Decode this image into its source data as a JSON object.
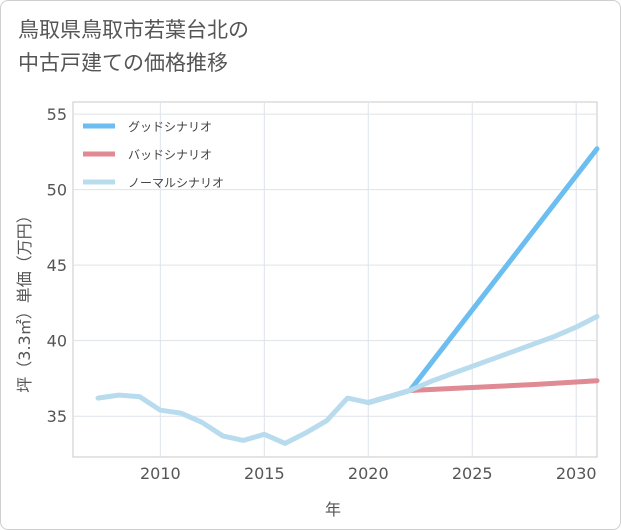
{
  "title_lines": [
    "鳥取県鳥取市若葉台北の",
    "中古戸建ての価格推移"
  ],
  "chart_data": {
    "type": "line",
    "title": "鳥取県鳥取市若葉台北の中古戸建ての価格推移",
    "xlabel": "年",
    "ylabel": "坪（3.3㎡）単価（万円）",
    "xlim": [
      2005.8,
      2031
    ],
    "ylim": [
      32.3,
      55.8
    ],
    "x_ticks": [
      2010,
      2015,
      2020,
      2025,
      2030
    ],
    "y_ticks": [
      35,
      40,
      45,
      50,
      55
    ],
    "grid": true,
    "legend_position": "top-left",
    "series": [
      {
        "name": "グッドシナリオ",
        "color": "#6cbef0",
        "x": [
          2020,
          2021,
          2022,
          2031
        ],
        "y": [
          35.9,
          36.3,
          36.7,
          52.7
        ]
      },
      {
        "name": "バッドシナリオ",
        "color": "#e08a93",
        "x": [
          2020,
          2021,
          2022,
          2025,
          2028,
          2031
        ],
        "y": [
          35.9,
          36.3,
          36.7,
          36.9,
          37.1,
          37.35
        ]
      },
      {
        "name": "ノーマルシナリオ",
        "color": "#b8dcee",
        "x": [
          2007,
          2008,
          2009,
          2010,
          2011,
          2012,
          2013,
          2014,
          2015,
          2016,
          2017,
          2018,
          2019,
          2020,
          2021,
          2022,
          2023,
          2024,
          2025,
          2026,
          2027,
          2028,
          2029,
          2030,
          2031
        ],
        "y": [
          36.2,
          36.4,
          36.3,
          35.4,
          35.2,
          34.6,
          33.7,
          33.4,
          33.8,
          33.2,
          33.9,
          34.7,
          36.2,
          35.9,
          36.3,
          36.7,
          37.3,
          37.8,
          38.3,
          38.8,
          39.3,
          39.8,
          40.3,
          40.9,
          41.6
        ]
      }
    ]
  }
}
